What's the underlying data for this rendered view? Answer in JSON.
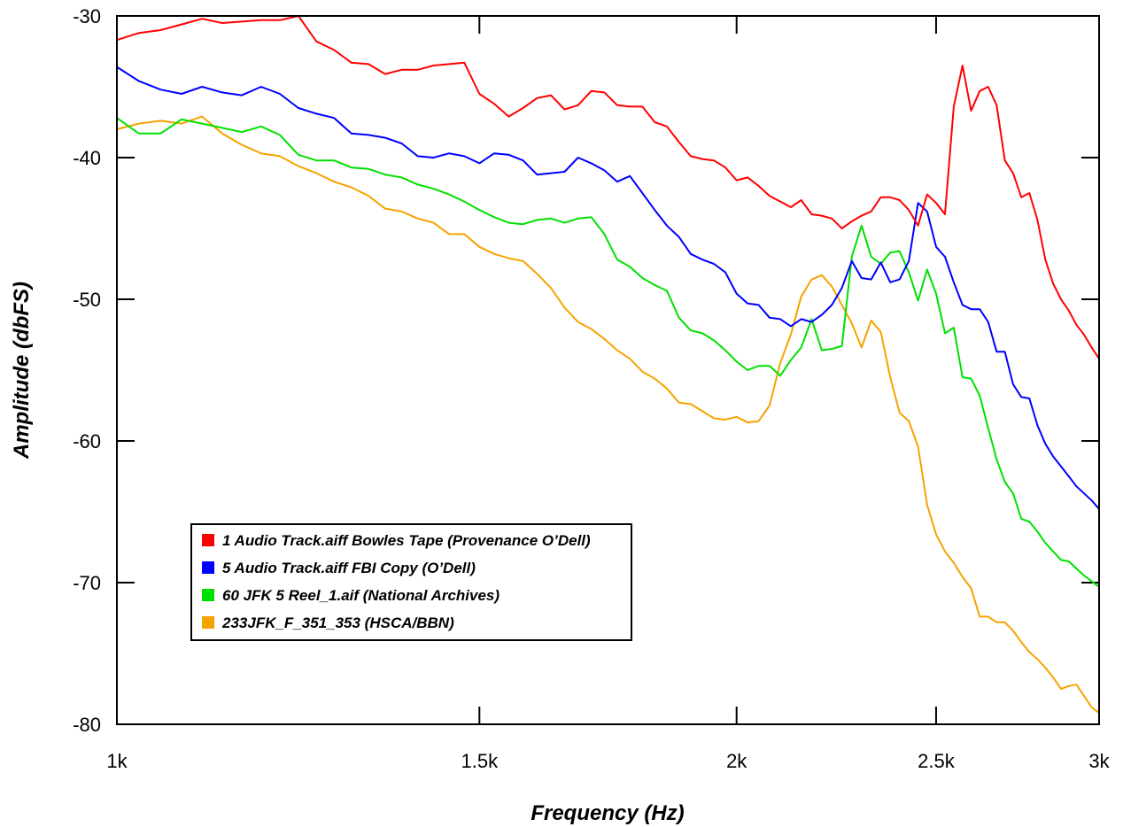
{
  "chart_data": {
    "type": "line",
    "title": "",
    "xlabel": "Frequency (Hz)",
    "ylabel": "Amplitude (dbFS)",
    "x_scale": "log",
    "xlim": [
      1000,
      3000
    ],
    "ylim": [
      -80,
      -30
    ],
    "x_ticks": [
      {
        "value": 1000,
        "label": "1k"
      },
      {
        "value": 1500,
        "label": "1.5k"
      },
      {
        "value": 2000,
        "label": "2k"
      },
      {
        "value": 2500,
        "label": "2.5k"
      },
      {
        "value": 3000,
        "label": "3k"
      }
    ],
    "y_ticks": [
      {
        "value": -30,
        "label": "-30"
      },
      {
        "value": -40,
        "label": "-40"
      },
      {
        "value": -50,
        "label": "-50"
      },
      {
        "value": -60,
        "label": "-60"
      },
      {
        "value": -70,
        "label": "-70"
      },
      {
        "value": -80,
        "label": "-80"
      }
    ],
    "grid": false,
    "legend_position": "bottom-left",
    "series": [
      {
        "name": "1 Audio Track.aiff  Bowles Tape (Provenance O’Dell)",
        "color": "#ff0000",
        "x": [
          1000,
          1025,
          1050,
          1075,
          1100,
          1125,
          1150,
          1175,
          1200,
          1225,
          1250,
          1275,
          1300,
          1325,
          1350,
          1375,
          1400,
          1425,
          1450,
          1475,
          1500,
          1525,
          1550,
          1575,
          1600,
          1625,
          1650,
          1675,
          1700,
          1725,
          1750,
          1775,
          1800,
          1825,
          1850,
          1875,
          1900,
          1925,
          1950,
          1975,
          2000,
          2025,
          2050,
          2075,
          2100,
          2125,
          2150,
          2175,
          2200,
          2225,
          2250,
          2275,
          2300,
          2325,
          2350,
          2375,
          2400,
          2425,
          2450,
          2475,
          2500,
          2525,
          2550,
          2575,
          2600,
          2625,
          2650,
          2675,
          2700,
          2725,
          2750,
          2775,
          2800,
          2825,
          2850,
          2875,
          2900,
          2925,
          2950,
          2975,
          3000
        ],
        "y": [
          -31.7,
          -31.2,
          -31.0,
          -30.6,
          -30.2,
          -30.5,
          -30.4,
          -30.3,
          -30.3,
          -30.0,
          -31.8,
          -32.4,
          -33.3,
          -33.4,
          -34.1,
          -33.8,
          -33.8,
          -33.5,
          -33.4,
          -33.3,
          -35.5,
          -36.2,
          -37.1,
          -36.5,
          -35.8,
          -35.6,
          -36.6,
          -36.3,
          -35.3,
          -35.4,
          -36.3,
          -36.4,
          -36.4,
          -37.5,
          -37.8,
          -38.9,
          -39.9,
          -40.1,
          -40.2,
          -40.7,
          -41.6,
          -41.4,
          -42.0,
          -42.7,
          -43.1,
          -43.5,
          -43.0,
          -44.0,
          -44.1,
          -44.3,
          -45.0,
          -44.5,
          -44.1,
          -43.8,
          -42.8,
          -42.8,
          -43.0,
          -43.7,
          -44.8,
          -42.6,
          -43.2,
          -44.0,
          -36.4,
          -33.5,
          -36.7,
          -35.3,
          -35.0,
          -36.3,
          -40.2,
          -41.1,
          -42.8,
          -42.5,
          -44.4,
          -47.2,
          -48.9,
          -50.0,
          -50.8,
          -51.8,
          -52.5,
          -53.4,
          -54.2
        ]
      },
      {
        "name": "5 Audio Track.aiff FBI Copy (O’Dell)",
        "color": "#0000ff",
        "x": [
          1000,
          1025,
          1050,
          1075,
          1100,
          1125,
          1150,
          1175,
          1200,
          1225,
          1250,
          1275,
          1300,
          1325,
          1350,
          1375,
          1400,
          1425,
          1450,
          1475,
          1500,
          1525,
          1550,
          1575,
          1600,
          1625,
          1650,
          1675,
          1700,
          1725,
          1750,
          1775,
          1800,
          1825,
          1850,
          1875,
          1900,
          1925,
          1950,
          1975,
          2000,
          2025,
          2050,
          2075,
          2100,
          2125,
          2150,
          2175,
          2200,
          2225,
          2250,
          2275,
          2300,
          2325,
          2350,
          2375,
          2400,
          2425,
          2450,
          2475,
          2500,
          2525,
          2550,
          2575,
          2600,
          2625,
          2650,
          2675,
          2700,
          2725,
          2750,
          2775,
          2800,
          2825,
          2850,
          2875,
          2900,
          2925,
          2950,
          2975,
          3000
        ],
        "y": [
          -33.6,
          -34.6,
          -35.2,
          -35.5,
          -35.0,
          -35.4,
          -35.6,
          -35.0,
          -35.5,
          -36.5,
          -36.9,
          -37.2,
          -38.3,
          -38.4,
          -38.6,
          -39.0,
          -39.9,
          -40.0,
          -39.7,
          -39.9,
          -40.4,
          -39.7,
          -39.8,
          -40.2,
          -41.2,
          -41.1,
          -41.0,
          -40.0,
          -40.4,
          -40.9,
          -41.7,
          -41.3,
          -42.5,
          -43.7,
          -44.8,
          -45.6,
          -46.8,
          -47.2,
          -47.5,
          -48.1,
          -49.6,
          -50.3,
          -50.4,
          -51.3,
          -51.4,
          -51.9,
          -51.4,
          -51.6,
          -51.1,
          -50.4,
          -49.2,
          -47.3,
          -48.5,
          -48.6,
          -47.4,
          -48.8,
          -48.6,
          -47.3,
          -43.2,
          -43.8,
          -46.3,
          -47.0,
          -48.8,
          -50.4,
          -50.7,
          -50.7,
          -51.6,
          -53.7,
          -53.7,
          -56.0,
          -56.9,
          -57.0,
          -58.9,
          -60.2,
          -61.1,
          -61.8,
          -62.5,
          -63.2,
          -63.7,
          -64.2,
          -64.8
        ]
      },
      {
        "name": "60 JFK 5 Reel_1.aif (National Archives)",
        "color": "#00e000",
        "x": [
          1000,
          1025,
          1050,
          1075,
          1100,
          1125,
          1150,
          1175,
          1200,
          1225,
          1250,
          1275,
          1300,
          1325,
          1350,
          1375,
          1400,
          1425,
          1450,
          1475,
          1500,
          1525,
          1550,
          1575,
          1600,
          1625,
          1650,
          1675,
          1700,
          1725,
          1750,
          1775,
          1800,
          1825,
          1850,
          1875,
          1900,
          1925,
          1950,
          1975,
          2000,
          2025,
          2050,
          2075,
          2100,
          2125,
          2150,
          2175,
          2200,
          2225,
          2250,
          2275,
          2300,
          2325,
          2350,
          2375,
          2400,
          2425,
          2450,
          2475,
          2500,
          2525,
          2550,
          2575,
          2600,
          2625,
          2650,
          2675,
          2700,
          2725,
          2750,
          2775,
          2800,
          2825,
          2850,
          2875,
          2900,
          2925,
          2950,
          2975,
          3000
        ],
        "y": [
          -37.2,
          -38.3,
          -38.3,
          -37.3,
          -37.6,
          -37.9,
          -38.2,
          -37.8,
          -38.4,
          -39.8,
          -40.2,
          -40.2,
          -40.7,
          -40.8,
          -41.2,
          -41.4,
          -41.9,
          -42.2,
          -42.6,
          -43.1,
          -43.7,
          -44.2,
          -44.6,
          -44.7,
          -44.4,
          -44.3,
          -44.6,
          -44.3,
          -44.2,
          -45.4,
          -47.2,
          -47.7,
          -48.5,
          -49.0,
          -49.4,
          -51.3,
          -52.2,
          -52.4,
          -52.9,
          -53.6,
          -54.4,
          -55.0,
          -54.7,
          -54.7,
          -55.4,
          -54.3,
          -53.4,
          -51.4,
          -53.6,
          -53.5,
          -53.3,
          -47.0,
          -44.8,
          -47.0,
          -47.5,
          -46.7,
          -46.6,
          -48.1,
          -50.1,
          -47.9,
          -49.6,
          -52.4,
          -52.0,
          -55.5,
          -55.6,
          -56.8,
          -59.1,
          -61.3,
          -62.9,
          -63.7,
          -65.5,
          -65.7,
          -66.4,
          -67.2,
          -67.8,
          -68.4,
          -68.5,
          -69.0,
          -69.5,
          -69.9,
          -70.3
        ]
      },
      {
        "name": "233JFK_F_351_353 (HSCA/BBN)",
        "color": "#f5a300",
        "x": [
          1000,
          1025,
          1050,
          1075,
          1100,
          1125,
          1150,
          1175,
          1200,
          1225,
          1250,
          1275,
          1300,
          1325,
          1350,
          1375,
          1400,
          1425,
          1450,
          1475,
          1500,
          1525,
          1550,
          1575,
          1600,
          1625,
          1650,
          1675,
          1700,
          1725,
          1750,
          1775,
          1800,
          1825,
          1850,
          1875,
          1900,
          1925,
          1950,
          1975,
          2000,
          2025,
          2050,
          2075,
          2100,
          2125,
          2150,
          2175,
          2200,
          2225,
          2250,
          2275,
          2300,
          2325,
          2350,
          2375,
          2400,
          2425,
          2450,
          2475,
          2500,
          2525,
          2550,
          2575,
          2600,
          2625,
          2650,
          2675,
          2700,
          2725,
          2750,
          2775,
          2800,
          2825,
          2850,
          2875,
          2900,
          2925,
          2950,
          2975,
          3000
        ],
        "y": [
          -38.0,
          -37.6,
          -37.4,
          -37.6,
          -37.1,
          -38.3,
          -39.1,
          -39.7,
          -39.9,
          -40.6,
          -41.1,
          -41.7,
          -42.1,
          -42.7,
          -43.6,
          -43.8,
          -44.3,
          -44.6,
          -45.4,
          -45.4,
          -46.3,
          -46.8,
          -47.1,
          -47.3,
          -48.2,
          -49.2,
          -50.6,
          -51.6,
          -52.1,
          -52.8,
          -53.6,
          -54.2,
          -55.1,
          -55.6,
          -56.3,
          -57.3,
          -57.4,
          -57.9,
          -58.4,
          -58.5,
          -58.3,
          -58.7,
          -58.6,
          -57.5,
          -54.5,
          -52.5,
          -49.8,
          -48.6,
          -48.3,
          -49.1,
          -50.4,
          -51.7,
          -53.4,
          -51.5,
          -52.3,
          -55.5,
          -58.0,
          -58.6,
          -60.4,
          -64.5,
          -66.6,
          -67.8,
          -68.6,
          -69.6,
          -70.4,
          -72.4,
          -72.4,
          -72.8,
          -72.8,
          -73.4,
          -74.2,
          -74.9,
          -75.4,
          -76.0,
          -76.7,
          -77.5,
          -77.3,
          -77.2,
          -78.0,
          -78.8,
          -79.2
        ]
      }
    ],
    "legend": [
      {
        "label": "1 Audio Track.aiff  Bowles Tape (Provenance O’Dell)",
        "color": "#ff0000"
      },
      {
        "label": "5 Audio Track.aiff FBI Copy (O’Dell)",
        "color": "#0000ff"
      },
      {
        "label": "60 JFK 5 Reel_1.aif (National Archives)",
        "color": "#00e000"
      },
      {
        "label": "233JFK_F_351_353 (HSCA/BBN)",
        "color": "#f5a300"
      }
    ]
  }
}
